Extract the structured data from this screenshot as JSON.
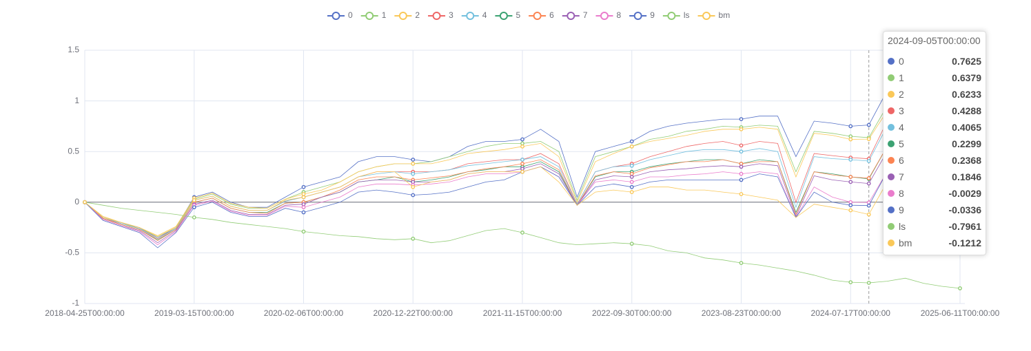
{
  "chart_data": {
    "type": "line",
    "categories": [
      "2018-04-25T00:00:00",
      null,
      null,
      null,
      null,
      null,
      "2019-03-15T00:00:00",
      null,
      null,
      null,
      null,
      null,
      "2020-02-06T00:00:00",
      null,
      null,
      null,
      null,
      null,
      "2020-12-22T00:00:00",
      null,
      null,
      null,
      null,
      null,
      "2021-11-15T00:00:00",
      null,
      null,
      null,
      null,
      null,
      "2022-09-30T00:00:00",
      null,
      null,
      null,
      null,
      null,
      "2023-08-23T00:00:00",
      null,
      null,
      null,
      null,
      null,
      "2024-07-17T00:00:00",
      null,
      null,
      null,
      null,
      null,
      "2025-06-11T00:00:00"
    ],
    "ylim": [
      -1,
      1.5
    ],
    "yticks": [
      -1,
      -0.5,
      0,
      0.5,
      1,
      1.5
    ],
    "grid": true,
    "series": [
      {
        "name": "0",
        "color": "#5470c6",
        "values": [
          0,
          -0.15,
          -0.2,
          -0.25,
          -0.35,
          -0.25,
          0.05,
          0.1,
          0,
          -0.05,
          -0.05,
          0.05,
          0.15,
          0.2,
          0.25,
          0.4,
          0.45,
          0.45,
          0.42,
          0.4,
          0.45,
          0.55,
          0.6,
          0.6,
          0.62,
          0.72,
          0.6,
          0.05,
          0.5,
          0.55,
          0.6,
          0.7,
          0.75,
          0.78,
          0.8,
          0.82,
          0.82,
          0.85,
          0.85,
          0.45,
          0.8,
          0.78,
          0.75,
          0.7625,
          1.1,
          null,
          null,
          null,
          null
        ]
      },
      {
        "name": "1",
        "color": "#91cc75",
        "values": [
          0,
          -0.15,
          -0.2,
          -0.26,
          -0.34,
          -0.25,
          0.03,
          0.08,
          -0.02,
          -0.06,
          -0.06,
          0.03,
          0.1,
          0.15,
          0.2,
          0.3,
          0.35,
          0.38,
          0.38,
          0.4,
          0.45,
          0.5,
          0.55,
          0.58,
          0.58,
          0.6,
          0.5,
          0.02,
          0.45,
          0.5,
          0.55,
          0.62,
          0.65,
          0.7,
          0.72,
          0.75,
          0.74,
          0.76,
          0.75,
          0.3,
          0.7,
          0.68,
          0.65,
          0.6379,
          0.95,
          null,
          null,
          null,
          null
        ]
      },
      {
        "name": "2",
        "color": "#fac858",
        "values": [
          0,
          -0.14,
          -0.2,
          -0.25,
          -0.33,
          -0.24,
          0.04,
          0.09,
          -0.01,
          -0.05,
          -0.06,
          0.03,
          0.08,
          0.12,
          0.2,
          0.3,
          0.35,
          0.38,
          0.38,
          0.38,
          0.42,
          0.48,
          0.5,
          0.52,
          0.55,
          0.58,
          0.45,
          0,
          0.4,
          0.48,
          0.55,
          0.6,
          0.63,
          0.66,
          0.7,
          0.72,
          0.72,
          0.74,
          0.72,
          0.25,
          0.68,
          0.66,
          0.62,
          0.6233,
          0.9,
          null,
          null,
          null,
          null
        ]
      },
      {
        "name": "3",
        "color": "#ee6666",
        "values": [
          0,
          -0.16,
          -0.21,
          -0.26,
          -0.36,
          -0.26,
          0.02,
          0.06,
          -0.04,
          -0.08,
          -0.08,
          0.01,
          0.05,
          0.1,
          0.15,
          0.25,
          0.3,
          0.3,
          0.3,
          0.3,
          0.32,
          0.38,
          0.4,
          0.42,
          0.42,
          0.48,
          0.38,
          -0.02,
          0.3,
          0.35,
          0.38,
          0.45,
          0.5,
          0.55,
          0.58,
          0.6,
          0.56,
          0.6,
          0.58,
          0,
          0.48,
          0.46,
          0.44,
          0.4288,
          0.8,
          null,
          null,
          null,
          null
        ]
      },
      {
        "name": "4",
        "color": "#73c0de",
        "values": [
          0,
          -0.15,
          -0.21,
          -0.26,
          -0.35,
          -0.26,
          0.02,
          0.06,
          -0.04,
          -0.08,
          -0.08,
          0.01,
          0.05,
          0.1,
          0.15,
          0.25,
          0.28,
          0.3,
          0.28,
          0.3,
          0.32,
          0.36,
          0.38,
          0.4,
          0.42,
          0.45,
          0.35,
          -0.02,
          0.3,
          0.35,
          0.36,
          0.42,
          0.46,
          0.5,
          0.52,
          0.52,
          0.5,
          0.53,
          0.5,
          -0.05,
          0.45,
          0.43,
          0.42,
          0.4065,
          0.75,
          null,
          null,
          null,
          null
        ]
      },
      {
        "name": "5",
        "color": "#3ba272",
        "values": [
          0,
          -0.16,
          -0.22,
          -0.27,
          -0.37,
          -0.27,
          0,
          0.04,
          -0.06,
          -0.1,
          -0.1,
          -0.01,
          0,
          0.05,
          0.1,
          0.2,
          0.22,
          0.25,
          0.2,
          0.22,
          0.25,
          0.3,
          0.32,
          0.35,
          0.35,
          0.4,
          0.3,
          -0.03,
          0.25,
          0.3,
          0.3,
          0.35,
          0.38,
          0.4,
          0.42,
          0.42,
          0.38,
          0.42,
          0.4,
          -0.1,
          0.3,
          0.28,
          0.25,
          0.2299,
          0.55,
          null,
          null,
          null,
          null
        ]
      },
      {
        "name": "6",
        "color": "#fc8452",
        "values": [
          0,
          -0.16,
          -0.22,
          -0.27,
          -0.38,
          -0.27,
          0,
          0.04,
          -0.06,
          -0.1,
          -0.11,
          -0.01,
          0,
          0.05,
          0.12,
          0.22,
          0.25,
          0.25,
          0.22,
          0.24,
          0.26,
          0.3,
          0.33,
          0.35,
          0.38,
          0.42,
          0.32,
          -0.03,
          0.26,
          0.3,
          0.28,
          0.34,
          0.37,
          0.4,
          0.4,
          0.42,
          0.38,
          0.4,
          0.4,
          -0.12,
          0.3,
          0.27,
          0.25,
          0.2368,
          0.55,
          null,
          null,
          null,
          null
        ]
      },
      {
        "name": "7",
        "color": "#9a60b4",
        "values": [
          0,
          -0.17,
          -0.23,
          -0.28,
          -0.4,
          -0.28,
          -0.02,
          0.02,
          -0.08,
          -0.12,
          -0.12,
          -0.03,
          -0.02,
          0.05,
          0.1,
          0.2,
          0.22,
          0.22,
          0.2,
          0.2,
          0.22,
          0.28,
          0.3,
          0.3,
          0.33,
          0.38,
          0.28,
          -0.03,
          0.22,
          0.26,
          0.25,
          0.3,
          0.32,
          0.33,
          0.35,
          0.36,
          0.35,
          0.38,
          0.36,
          -0.14,
          0.26,
          0.22,
          0.2,
          0.1846,
          0.5,
          null,
          null,
          null,
          null
        ]
      },
      {
        "name": "8",
        "color": "#ea7ccc",
        "values": [
          0,
          -0.17,
          -0.23,
          -0.29,
          -0.42,
          -0.29,
          -0.03,
          0.01,
          -0.09,
          -0.13,
          -0.13,
          -0.04,
          -0.05,
          0,
          0.05,
          0.15,
          0.18,
          0.18,
          0.17,
          0.18,
          0.2,
          0.25,
          0.28,
          0.28,
          0.3,
          0.35,
          0.25,
          -0.03,
          0.2,
          0.22,
          0.2,
          0.25,
          0.25,
          0.27,
          0.28,
          0.3,
          0.28,
          0.3,
          0.28,
          -0.15,
          0.15,
          0.05,
          0,
          -0.0029,
          0.3,
          null,
          null,
          null,
          null
        ]
      },
      {
        "name": "9",
        "color": "#5470c6",
        "values": [
          0,
          -0.18,
          -0.24,
          -0.3,
          -0.45,
          -0.3,
          -0.05,
          0,
          -0.1,
          -0.14,
          -0.14,
          -0.06,
          -0.1,
          -0.05,
          0,
          0.1,
          0.12,
          0.1,
          0.07,
          0.08,
          0.1,
          0.15,
          0.2,
          0.22,
          0.3,
          0.35,
          0.25,
          -0.03,
          0.15,
          0.18,
          0.15,
          0.2,
          0.22,
          0.22,
          0.22,
          0.22,
          0.22,
          0.28,
          0.25,
          -0.15,
          0.1,
          0,
          -0.03,
          -0.0336,
          0.3,
          null,
          null,
          null,
          null
        ]
      },
      {
        "name": "ls",
        "color": "#91cc75",
        "values": [
          0,
          -0.03,
          -0.06,
          -0.08,
          -0.1,
          -0.12,
          -0.15,
          -0.17,
          -0.2,
          -0.22,
          -0.24,
          -0.26,
          -0.29,
          -0.31,
          -0.33,
          -0.34,
          -0.36,
          -0.37,
          -0.36,
          -0.4,
          -0.38,
          -0.33,
          -0.28,
          -0.26,
          -0.3,
          -0.35,
          -0.4,
          -0.42,
          -0.41,
          -0.4,
          -0.41,
          -0.43,
          -0.48,
          -0.5,
          -0.55,
          -0.57,
          -0.6,
          -0.62,
          -0.65,
          -0.68,
          -0.72,
          -0.77,
          -0.79,
          -0.7961,
          -0.78,
          -0.75,
          -0.8,
          -0.83,
          -0.85
        ]
      },
      {
        "name": "bm",
        "color": "#fac858",
        "values": [
          0,
          -0.15,
          -0.2,
          -0.25,
          -0.34,
          -0.25,
          0.02,
          0.06,
          -0.04,
          -0.08,
          -0.08,
          0.02,
          0.05,
          0.1,
          0.15,
          0.25,
          0.3,
          0.3,
          0.15,
          0.2,
          0.22,
          0.28,
          0.3,
          0.3,
          0.3,
          0.35,
          0.2,
          -0.03,
          0.1,
          0.12,
          0.1,
          0.15,
          0.15,
          0.12,
          0.12,
          0.1,
          0.08,
          0.05,
          0.02,
          -0.15,
          -0.02,
          -0.05,
          -0.08,
          -0.1212,
          0.2,
          null,
          null,
          null,
          null
        ]
      }
    ],
    "tooltip": {
      "title": "2024-09-05T00:00:00"
    }
  }
}
